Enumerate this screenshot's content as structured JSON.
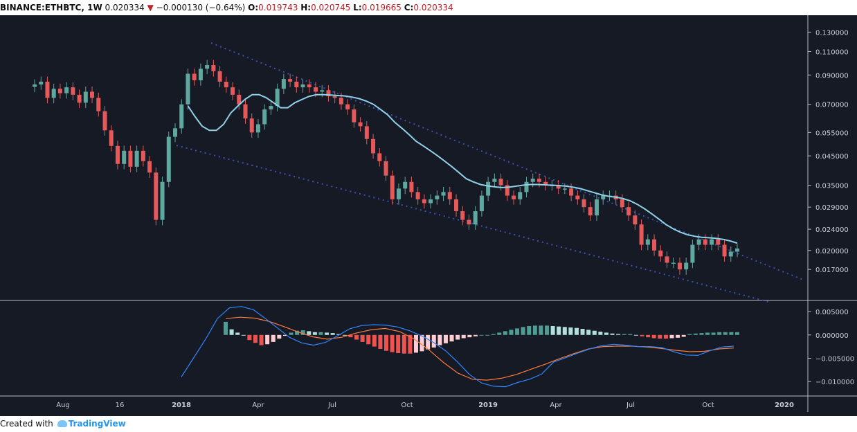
{
  "header": {
    "symbol": "BINANCE:ETHBTC, 1W",
    "last": "0.020334",
    "arrow": "▼",
    "change": "−0.000130 (−0.64%)",
    "o_label": "O:",
    "o_value": "0.019743",
    "h_label": "H:",
    "h_value": "0.020745",
    "l_label": "L:",
    "l_value": "0.019665",
    "c_label": "C:",
    "c_value": "0.020334"
  },
  "footer": {
    "created_with": "Created with",
    "brand": "TradingView"
  },
  "chart_data": [
    {
      "type": "candlestick",
      "y_ticks": [
        0.13,
        0.11,
        0.09,
        0.07,
        0.055,
        0.045,
        0.035,
        0.029,
        0.024,
        0.02,
        0.017
      ],
      "y_tick_labels": [
        "0.130000",
        "0.110000",
        "0.090000",
        "0.070000",
        "0.055000",
        "0.045000",
        "0.035000",
        "0.029000",
        "0.024000",
        "0.020000",
        "0.017000"
      ],
      "ylim": [
        0.0135,
        0.145
      ],
      "log_scale": true,
      "x_ticks": [
        "Aug",
        "16",
        "2018",
        "Apr",
        "Jul",
        "Oct",
        "2019",
        "Apr",
        "Jul",
        "Oct",
        "2020"
      ],
      "grid": false,
      "colors": {
        "up": "#5fa8a0",
        "down": "#e5595b",
        "ma": "#8fd1e8",
        "trend": "#3a53b8",
        "background": "#161a25"
      },
      "closes": [
        0.083,
        0.085,
        0.074,
        0.08,
        0.077,
        0.081,
        0.076,
        0.071,
        0.078,
        0.074,
        0.066,
        0.056,
        0.049,
        0.042,
        0.047,
        0.041,
        0.047,
        0.043,
        0.039,
        0.026,
        0.036,
        0.053,
        0.057,
        0.07,
        0.091,
        0.086,
        0.095,
        0.098,
        0.093,
        0.085,
        0.081,
        0.076,
        0.07,
        0.062,
        0.055,
        0.059,
        0.067,
        0.069,
        0.08,
        0.087,
        0.085,
        0.081,
        0.083,
        0.081,
        0.078,
        0.079,
        0.075,
        0.074,
        0.07,
        0.067,
        0.06,
        0.058,
        0.052,
        0.046,
        0.043,
        0.038,
        0.031,
        0.034,
        0.036,
        0.033,
        0.031,
        0.03,
        0.031,
        0.032,
        0.033,
        0.031,
        0.028,
        0.026,
        0.025,
        0.028,
        0.032,
        0.036,
        0.037,
        0.035,
        0.032,
        0.031,
        0.033,
        0.036,
        0.037,
        0.036,
        0.035,
        0.035,
        0.034,
        0.034,
        0.032,
        0.031,
        0.029,
        0.027,
        0.031,
        0.032,
        0.032,
        0.031,
        0.029,
        0.027,
        0.025,
        0.021,
        0.022,
        0.02,
        0.019,
        0.018,
        0.018,
        0.017,
        0.018,
        0.021,
        0.022,
        0.021,
        0.022,
        0.021,
        0.019,
        0.0198,
        0.020334
      ],
      "ma_start": 24,
      "ma": [
        0.069,
        0.063,
        0.058,
        0.056,
        0.056,
        0.059,
        0.065,
        0.069,
        0.073,
        0.076,
        0.076,
        0.074,
        0.071,
        0.068,
        0.068,
        0.071,
        0.073,
        0.075,
        0.076,
        0.076,
        0.0758,
        0.0755,
        0.0752,
        0.0745,
        0.0735,
        0.072,
        0.07,
        0.067,
        0.064,
        0.06,
        0.057,
        0.054,
        0.051,
        0.049,
        0.047,
        0.045,
        0.043,
        0.041,
        0.039,
        0.037,
        0.036,
        0.0352,
        0.0348,
        0.0345,
        0.0343,
        0.0344,
        0.0347,
        0.035,
        0.0352,
        0.0352,
        0.0351,
        0.035,
        0.0349,
        0.0347,
        0.0344,
        0.034,
        0.0334,
        0.0328,
        0.0322,
        0.0318,
        0.0316,
        0.0312,
        0.0306,
        0.0297,
        0.0286,
        0.0274,
        0.0262,
        0.025,
        0.0241,
        0.0234,
        0.0229,
        0.0226,
        0.0224,
        0.0223,
        0.0222,
        0.022,
        0.0217,
        0.0213
      ]
    },
    {
      "type": "macd",
      "y_ticks": [
        0.005,
        0.0,
        -0.005,
        -0.01
      ],
      "y_tick_labels": [
        "0.005000",
        "0.000000",
        "−0.005000",
        "−0.010000"
      ],
      "ylim": [
        -0.0125,
        0.0065
      ],
      "colors": {
        "macd": "#2f86ff",
        "signal": "#ff7a3c",
        "hist_pos_strong": "#4f9c94",
        "hist_pos_weak": "#b2dfdb",
        "hist_neg_strong": "#ef5350",
        "hist_neg_weak": "#ffcdd2"
      },
      "macd": [
        -0.009,
        -0.005,
        -0.001,
        0.0035,
        0.0058,
        0.0061,
        0.0054,
        0.0035,
        0.0015,
        -0.0005,
        -0.0017,
        -0.0022,
        -0.0016,
        -0.0002,
        0.0013,
        0.002,
        0.0022,
        0.0021,
        0.0017,
        0.0009,
        -0.0002,
        -0.0016,
        -0.0034,
        -0.0058,
        -0.0085,
        -0.0103,
        -0.011,
        -0.0111,
        -0.0102,
        -0.0095,
        -0.0084,
        -0.0058,
        -0.0049,
        -0.0039,
        -0.003,
        -0.0023,
        -0.002,
        -0.0022,
        -0.0025,
        -0.0025,
        -0.0027,
        -0.0036,
        -0.0043,
        -0.0044,
        -0.0034,
        -0.0026,
        -0.0024
      ],
      "signal": [
        0.0035,
        0.0038,
        0.0036,
        0.0029,
        0.0018,
        0.0006,
        -0.0004,
        -0.0009,
        -0.0005,
        0.0004,
        0.0011,
        0.0014,
        0.0007,
        -0.0009,
        -0.0032,
        -0.0059,
        -0.0082,
        -0.0095,
        -0.0097,
        -0.0093,
        -0.0085,
        -0.0074,
        -0.0063,
        -0.0051,
        -0.004,
        -0.003,
        -0.0025,
        -0.0024,
        -0.0024,
        -0.0026,
        -0.0029,
        -0.0033,
        -0.0036,
        -0.0035,
        -0.003,
        -0.0028
      ],
      "histogram": [
        0.0028,
        0.0012,
        0.0005,
        0.0,
        -0.0011,
        -0.0017,
        -0.0022,
        -0.002,
        -0.0015,
        -0.0008,
        -0.0002,
        0.0005,
        0.0009,
        0.001,
        0.0008,
        0.0006,
        0.0006,
        0.0005,
        0.0004,
        0.0002,
        0.0,
        -0.0005,
        -0.001,
        -0.0015,
        -0.002,
        -0.0025,
        -0.003,
        -0.0034,
        -0.0037,
        -0.0039,
        -0.004,
        -0.004,
        -0.0038,
        -0.0035,
        -0.0031,
        -0.0027,
        -0.0022,
        -0.0018,
        -0.0014,
        -0.001,
        -0.0007,
        -0.0005,
        -0.0003,
        0.0,
        0.0,
        0.0002,
        0.0005,
        0.0008,
        0.0011,
        0.0014,
        0.0017,
        0.0019,
        0.002,
        0.002,
        0.002,
        0.0019,
        0.0018,
        0.0017,
        0.0016,
        0.0015,
        0.0013,
        0.0011,
        0.0009,
        0.0007,
        0.0005,
        0.0003,
        0.0002,
        0.0002,
        0.0002,
        0.0,
        -0.0003,
        -0.0005,
        -0.0007,
        -0.0008,
        -0.0008,
        -0.0007,
        -0.0006,
        -0.0004,
        0.0002,
        0.0003,
        0.0004,
        0.0005,
        0.0005,
        0.0006,
        0.0006,
        0.0006,
        0.0006
      ]
    }
  ]
}
